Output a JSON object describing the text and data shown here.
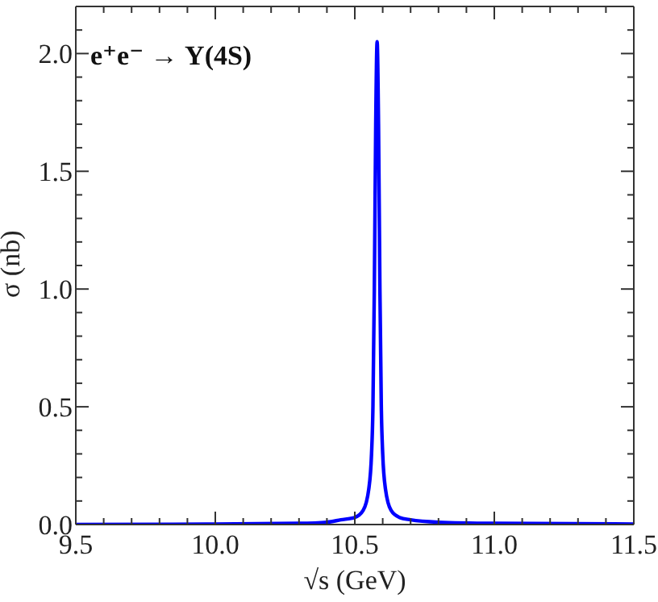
{
  "chart_data": {
    "type": "line",
    "title": "e⁺e⁻ → Υ(4S)",
    "xlabel": "√s (GeV)",
    "ylabel": "σ (nb)",
    "x": [
      9.5,
      10.0,
      10.3,
      10.4,
      10.45,
      10.5,
      10.53,
      10.55,
      10.56,
      10.565,
      10.57,
      10.575,
      10.58,
      10.585,
      10.59,
      10.595,
      10.6,
      10.61,
      10.63,
      10.66,
      10.7,
      10.8,
      11.0,
      11.5
    ],
    "series": [
      {
        "color": "#0000ff",
        "values": [
          0.0,
          0.002,
          0.005,
          0.01,
          0.02,
          0.03,
          0.06,
          0.15,
          0.3,
          0.5,
          1.0,
          1.7,
          2.05,
          1.7,
          1.0,
          0.5,
          0.3,
          0.15,
          0.06,
          0.03,
          0.02,
          0.01,
          0.005,
          0.002
        ]
      }
    ],
    "xlim": [
      9.5,
      11.5
    ],
    "xticks": [
      9.5,
      {
        "value": 9.6,
        "label": null
      },
      {
        "value": 9.7,
        "label": null
      },
      {
        "value": 9.8,
        "label": null
      },
      {
        "value": 9.9,
        "label": null
      },
      {
        "value": 10.0,
        "label": "10.0"
      },
      {
        "value": 10.1,
        "label": null
      },
      {
        "value": 10.2,
        "label": null
      },
      {
        "value": 10.3,
        "label": null
      },
      {
        "value": 10.4,
        "label": null
      },
      10.5,
      {
        "value": 10.6,
        "label": null
      },
      {
        "value": 10.7,
        "label": null
      },
      {
        "value": 10.8,
        "label": null
      },
      {
        "value": 10.9,
        "label": null
      },
      {
        "value": 11.0,
        "label": "11.0"
      },
      {
        "value": 11.1,
        "label": null
      },
      {
        "value": 11.2,
        "label": null
      },
      {
        "value": 11.3,
        "label": null
      },
      {
        "value": 11.4,
        "label": null
      },
      11.5
    ],
    "ylim": [
      0,
      2.2
    ],
    "yticks": [
      {
        "value": 0,
        "label": "0.0"
      },
      {
        "value": 0.1,
        "label": null
      },
      {
        "value": 0.2,
        "label": null
      },
      {
        "value": 0.3,
        "label": null
      },
      {
        "value": 0.4,
        "label": null
      },
      0.5,
      {
        "value": 0.6,
        "label": null
      },
      {
        "value": 0.7,
        "label": null
      },
      {
        "value": 0.8,
        "label": null
      },
      {
        "value": 0.9,
        "label": null
      },
      {
        "value": 1.0,
        "label": "1.0"
      },
      {
        "value": 1.1,
        "label": null
      },
      {
        "value": 1.2,
        "label": null
      },
      {
        "value": 1.3,
        "label": null
      },
      {
        "value": 1.4,
        "label": null
      },
      1.5,
      {
        "value": 1.6,
        "label": null
      },
      {
        "value": 1.7,
        "label": null
      },
      {
        "value": 1.8,
        "label": null
      },
      {
        "value": 1.9,
        "label": null
      },
      {
        "value": 2.0,
        "label": "2.0"
      },
      {
        "value": 2.1,
        "label": null
      },
      {
        "value": 2.2,
        "label": null
      }
    ],
    "grid": false,
    "legend": false
  }
}
